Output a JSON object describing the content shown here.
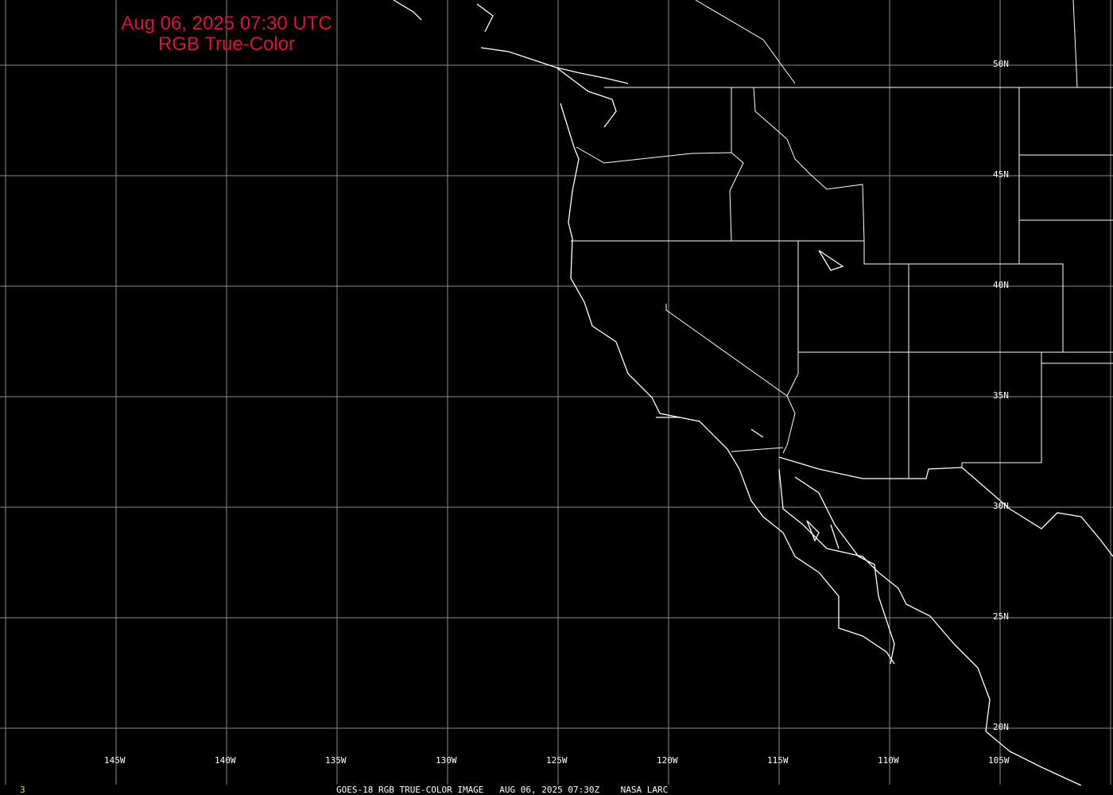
{
  "title": {
    "line1": "Aug 06, 2025 07:30 UTC",
    "line2": "RGB True-Color"
  },
  "lon_labels": [
    "145W",
    "140W",
    "135W",
    "130W",
    "125W",
    "120W",
    "115W",
    "110W",
    "105W"
  ],
  "lat_labels": [
    "50N",
    "45N",
    "40N",
    "35N",
    "30N",
    "25N",
    "20N"
  ],
  "footer": {
    "frame": "3",
    "caption": "GOES-18 RGB TRUE-COLOR IMAGE   AUG 06, 2025 07:30Z    NASA LARC"
  },
  "colors": {
    "background": "#000000",
    "grid": "#8c8c8c",
    "coastline": "#ffffff",
    "title": "#e0103a",
    "frame": "#e8e800"
  }
}
